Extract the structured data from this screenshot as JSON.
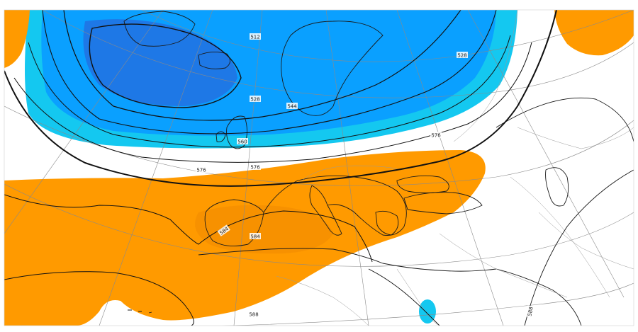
{
  "map": {
    "colors": {
      "cold_deep": "#1e78e6",
      "cold_mid": "#0aa0ff",
      "cold_light": "#14c8f0",
      "warm": "#ff9a00",
      "warm_deep": "#f08a00",
      "isohypse": "#111111",
      "graticule": "#8a8a8a",
      "coast": "#1a1a1a",
      "border": "#9a9a9a"
    },
    "contour_labels": [
      {
        "value": "512"
      },
      {
        "value": "528"
      },
      {
        "value": "528"
      },
      {
        "value": "544"
      },
      {
        "value": "560"
      },
      {
        "value": "576"
      },
      {
        "value": "576"
      },
      {
        "value": "576"
      },
      {
        "value": "584"
      },
      {
        "value": "584"
      },
      {
        "value": "588"
      },
      {
        "value": "588"
      }
    ]
  }
}
